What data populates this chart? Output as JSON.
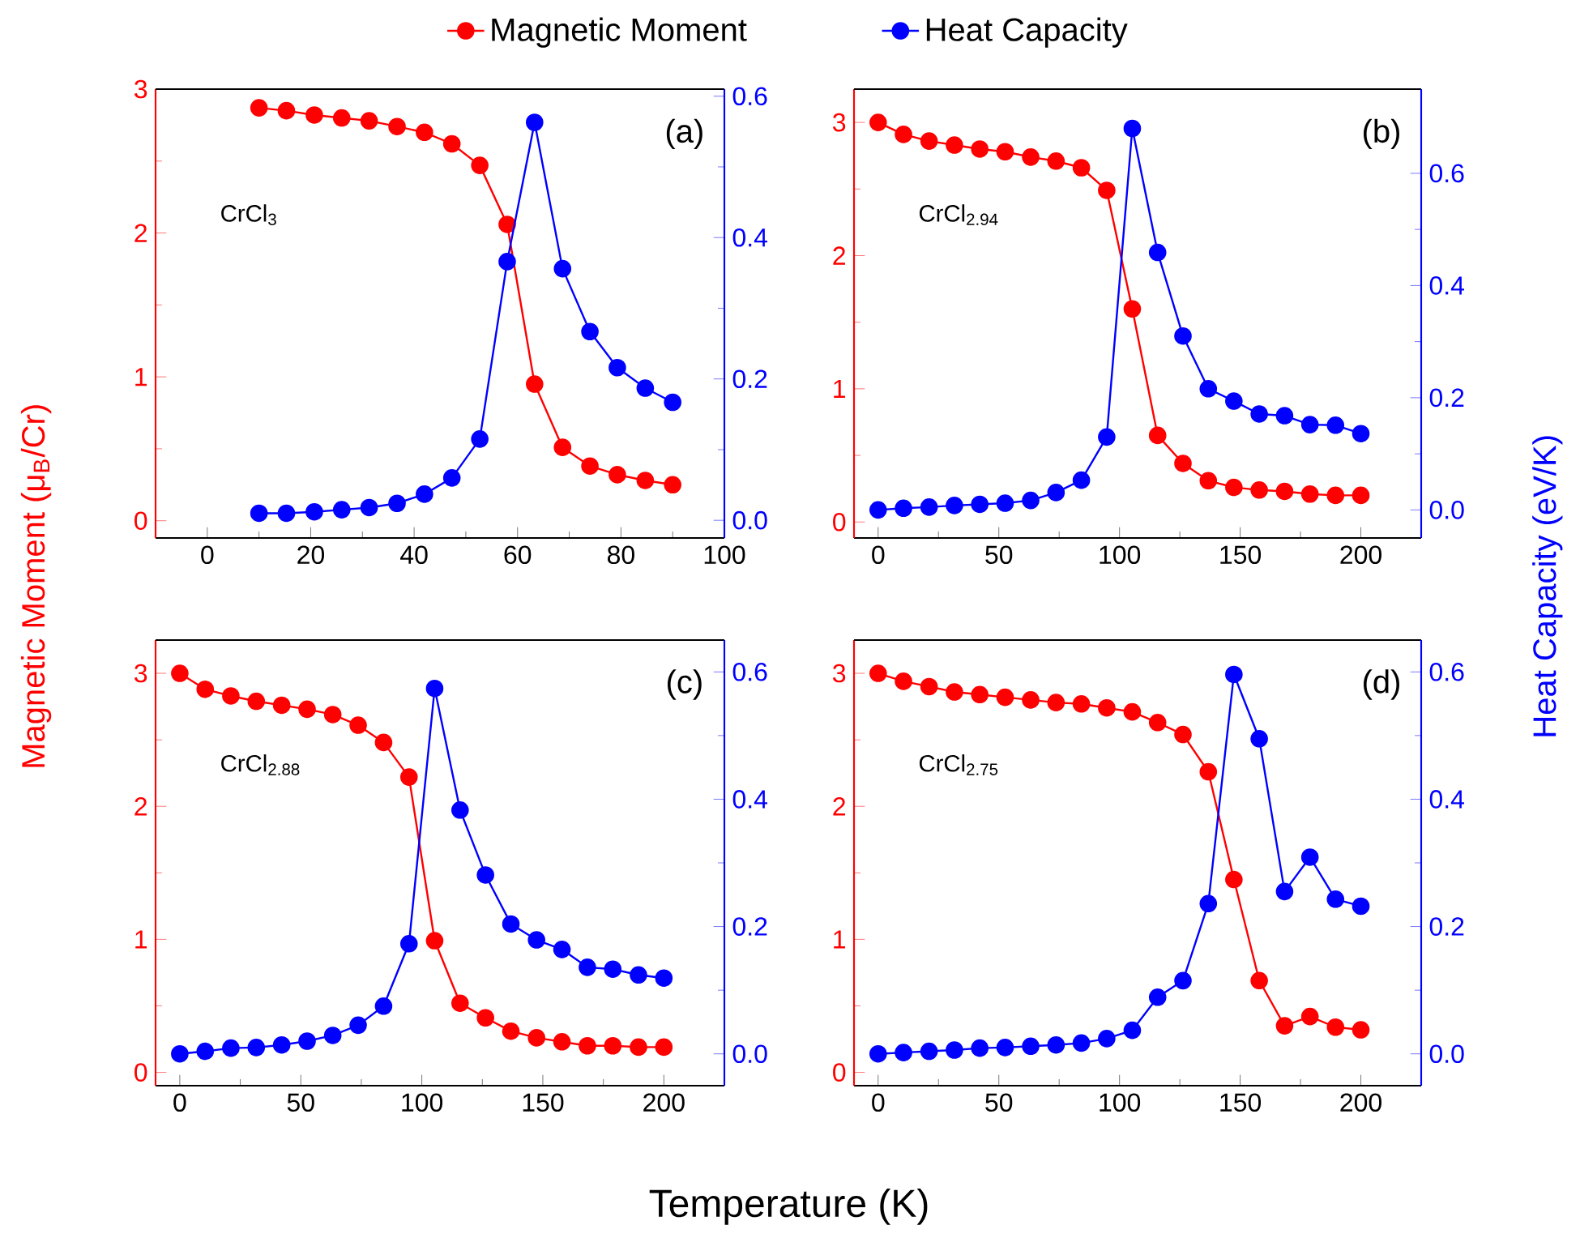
{
  "chart_data": [
    {
      "type": "line",
      "xlabel": "Temperature (K)",
      "ylabel": "Magnetic Moment (μ$_{B}$/Cr)",
      "y2label": "Heat Capacity (eV/K)",
      "legend": "top",
      "marker": "circle",
      "line_style": "solid",
      "annotations": [
        "(a)",
        "CrCl$_{3}$"
      ],
      "x": [
        10,
        15.3,
        20.7,
        26,
        31.3,
        36.7,
        42,
        47.3,
        52.7,
        58,
        63.3,
        68.7,
        74,
        79.3,
        84.7,
        90
      ],
      "xlim": [
        -10,
        100
      ],
      "xticks": [
        0,
        20,
        40,
        60,
        80,
        100
      ],
      "ylim": [
        -0.12,
        3.0
      ],
      "yticks": [
        0,
        1,
        2,
        3
      ],
      "y2lim": [
        -0.025,
        0.61
      ],
      "y2ticks": [
        {
          "value": 0,
          "label": "0.0"
        },
        {
          "value": 0.2,
          "label": "0.2"
        },
        {
          "value": 0.4,
          "label": "0.4"
        },
        {
          "value": 0.6,
          "label": "0.6"
        }
      ],
      "series": [
        {
          "name": "Magnetic Moment",
          "color": "#ff0000",
          "values": [
            2.87,
            2.85,
            2.82,
            2.8,
            2.78,
            2.74,
            2.7,
            2.62,
            2.47,
            2.06,
            0.95,
            0.51,
            0.38,
            0.32,
            0.28,
            0.25
          ]
        },
        {
          "name": "Heat Capacity",
          "color": "#0000ff",
          "axis": "y2",
          "values": [
            0.01,
            0.01,
            0.012,
            0.015,
            0.018,
            0.024,
            0.037,
            0.06,
            0.115,
            0.366,
            0.563,
            0.356,
            0.267,
            0.216,
            0.187,
            0.167
          ]
        }
      ]
    },
    {
      "type": "line",
      "marker": "circle",
      "line_style": "solid",
      "annotations": [
        "(b)",
        "CrCl$_{2.94}$"
      ],
      "x": [
        0,
        10.5,
        21.1,
        31.6,
        42.1,
        52.6,
        63.2,
        73.7,
        84.2,
        94.7,
        105.3,
        115.8,
        126.3,
        136.8,
        147.4,
        157.9,
        168.4,
        178.9,
        189.5,
        200
      ],
      "xlim": [
        -10,
        225
      ],
      "xticks": [
        0,
        50,
        100,
        150,
        200
      ],
      "ylim": [
        -0.12,
        3.25
      ],
      "yticks": [
        0,
        1,
        2,
        3
      ],
      "y2lim": [
        -0.05,
        0.75
      ],
      "y2ticks": [
        {
          "value": 0,
          "label": "0.0"
        },
        {
          "value": 0.2,
          "label": "0.2"
        },
        {
          "value": 0.4,
          "label": "0.4"
        },
        {
          "value": 0.6,
          "label": "0.6"
        }
      ],
      "series": [
        {
          "color": "#ff0000",
          "values": [
            3.0,
            2.91,
            2.86,
            2.83,
            2.8,
            2.78,
            2.74,
            2.71,
            2.66,
            2.49,
            1.6,
            0.65,
            0.44,
            0.31,
            0.26,
            0.24,
            0.23,
            0.21,
            0.2,
            0.2
          ]
        },
        {
          "color": "#0000ff",
          "axis": "y2",
          "values": [
            0.0,
            0.003,
            0.005,
            0.008,
            0.01,
            0.012,
            0.017,
            0.031,
            0.053,
            0.13,
            0.68,
            0.459,
            0.31,
            0.216,
            0.194,
            0.171,
            0.168,
            0.152,
            0.151,
            0.136
          ]
        }
      ]
    },
    {
      "type": "line",
      "marker": "circle",
      "line_style": "solid",
      "annotations": [
        "(c)",
        "CrCl$_{2.88}$"
      ],
      "x": [
        0,
        10.5,
        21.1,
        31.6,
        42.1,
        52.6,
        63.2,
        73.7,
        84.2,
        94.7,
        105.3,
        115.8,
        126.3,
        136.8,
        147.4,
        157.9,
        168.4,
        178.9,
        189.5,
        200
      ],
      "xlim": [
        -10,
        225
      ],
      "xticks": [
        0,
        50,
        100,
        150,
        200
      ],
      "ylim": [
        -0.1,
        3.25
      ],
      "yticks": [
        0,
        1,
        2,
        3
      ],
      "y2lim": [
        -0.05,
        0.65
      ],
      "y2ticks": [
        {
          "value": 0,
          "label": "0.0"
        },
        {
          "value": 0.2,
          "label": "0.2"
        },
        {
          "value": 0.4,
          "label": "0.4"
        },
        {
          "value": 0.6,
          "label": "0.6"
        }
      ],
      "series": [
        {
          "color": "#ff0000",
          "values": [
            3.0,
            2.88,
            2.83,
            2.79,
            2.76,
            2.73,
            2.69,
            2.61,
            2.48,
            2.22,
            0.99,
            0.52,
            0.41,
            0.31,
            0.26,
            0.23,
            0.2,
            0.2,
            0.19,
            0.19
          ]
        },
        {
          "color": "#0000ff",
          "axis": "y2",
          "values": [
            0.0,
            0.004,
            0.009,
            0.01,
            0.014,
            0.02,
            0.029,
            0.045,
            0.075,
            0.173,
            0.574,
            0.383,
            0.281,
            0.204,
            0.179,
            0.164,
            0.136,
            0.133,
            0.124,
            0.119
          ]
        }
      ]
    },
    {
      "type": "line",
      "marker": "circle",
      "line_style": "solid",
      "annotations": [
        "(d)",
        "CrCl$_{2.75}$"
      ],
      "x": [
        0,
        10.5,
        21.1,
        31.6,
        42.1,
        52.6,
        63.2,
        73.7,
        84.2,
        94.7,
        105.3,
        115.8,
        126.3,
        136.8,
        147.4,
        157.9,
        168.4,
        178.9,
        189.5,
        200
      ],
      "xlim": [
        -10,
        225
      ],
      "xticks": [
        0,
        50,
        100,
        150,
        200
      ],
      "ylim": [
        -0.1,
        3.25
      ],
      "yticks": [
        0,
        1,
        2,
        3
      ],
      "y2lim": [
        -0.05,
        0.65
      ],
      "y2ticks": [
        {
          "value": 0,
          "label": "0.0"
        },
        {
          "value": 0.2,
          "label": "0.2"
        },
        {
          "value": 0.4,
          "label": "0.4"
        },
        {
          "value": 0.6,
          "label": "0.6"
        }
      ],
      "series": [
        {
          "color": "#ff0000",
          "values": [
            3.0,
            2.94,
            2.9,
            2.86,
            2.84,
            2.82,
            2.8,
            2.78,
            2.77,
            2.74,
            2.71,
            2.63,
            2.54,
            2.26,
            1.45,
            0.69,
            0.35,
            0.42,
            0.34,
            0.32
          ]
        },
        {
          "color": "#0000ff",
          "axis": "y2",
          "values": [
            0.0,
            0.002,
            0.004,
            0.006,
            0.009,
            0.01,
            0.012,
            0.014,
            0.017,
            0.024,
            0.037,
            0.089,
            0.115,
            0.236,
            0.596,
            0.495,
            0.255,
            0.309,
            0.243,
            0.232
          ]
        }
      ]
    }
  ]
}
